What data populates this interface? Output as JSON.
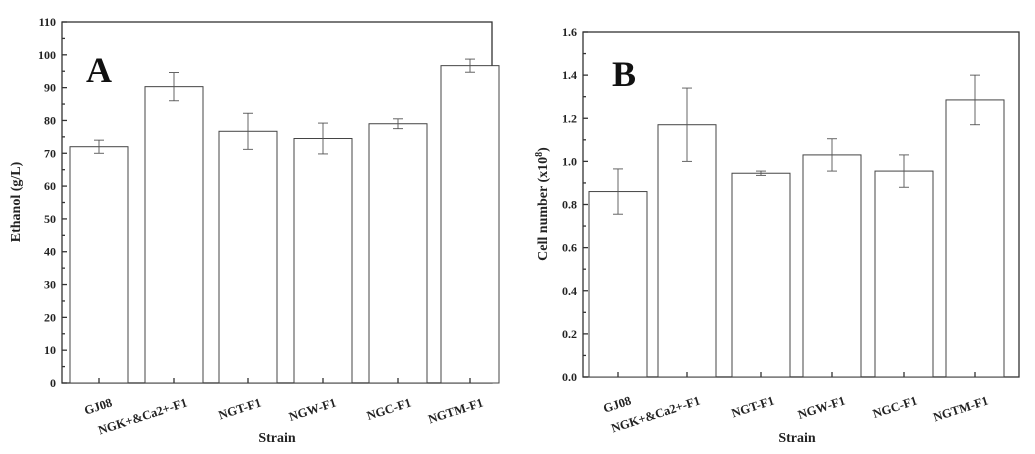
{
  "chart_data": [
    {
      "type": "bar",
      "panel_label": "A",
      "xlabel": "Strain",
      "ylabel": "Ethanol (g/L)",
      "ylim": [
        0,
        110
      ],
      "yticks": [
        "0",
        "10",
        "20",
        "30",
        "40",
        "50",
        "60",
        "70",
        "80",
        "90",
        "100",
        "110"
      ],
      "categories": [
        "GJ08",
        "NGK+&Ca2+-F1",
        "NGT-F1",
        "NGW-F1",
        "NGC-F1",
        "NGTM-F1"
      ],
      "values": [
        72.0,
        90.3,
        76.7,
        74.5,
        79.0,
        96.7
      ],
      "errors": [
        2.0,
        4.3,
        5.5,
        4.7,
        1.5,
        2.0
      ],
      "grid": false
    },
    {
      "type": "bar",
      "panel_label": "B",
      "xlabel": "Strain",
      "ylabel_main": "Cell number (x10",
      "ylabel_exp": "8",
      "ylabel_end": ")",
      "ylim": [
        0,
        1.6
      ],
      "yticks": [
        "0.0",
        "0.2",
        "0.4",
        "0.6",
        "0.8",
        "1.0",
        "1.2",
        "1.4",
        "1.6"
      ],
      "categories": [
        "GJ08",
        "NGK+&Ca2+-F1",
        "NGT-F1",
        "NGW-F1",
        "NGC-F1",
        "NGTM-F1"
      ],
      "values": [
        0.86,
        1.17,
        0.945,
        1.03,
        0.955,
        1.285
      ],
      "errors": [
        0.105,
        0.17,
        0.01,
        0.075,
        0.075,
        0.115
      ],
      "grid": false
    }
  ]
}
